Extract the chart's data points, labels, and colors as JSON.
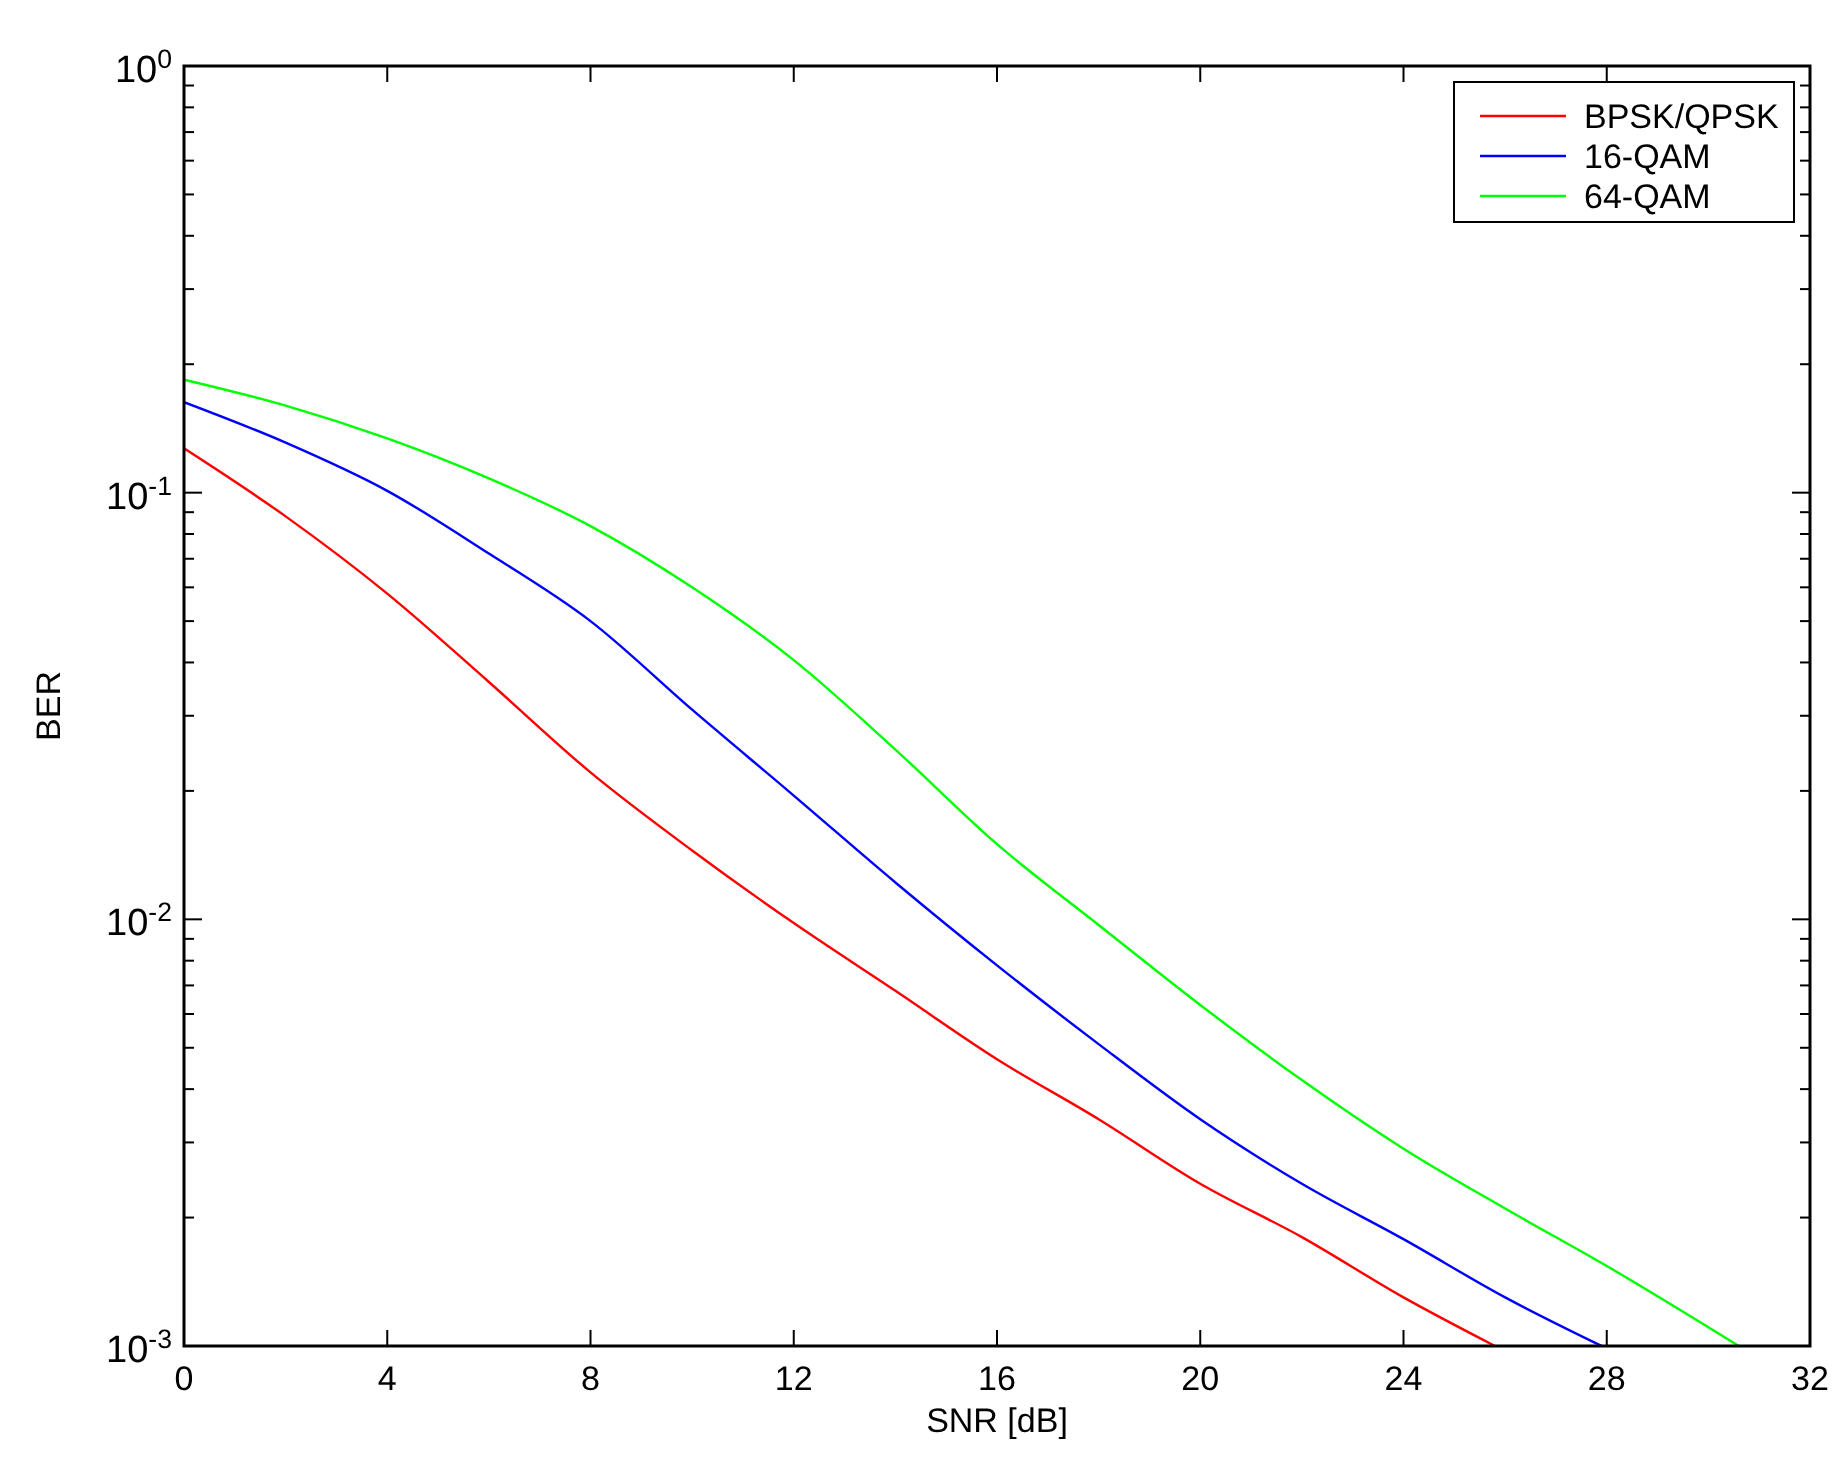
{
  "chart_data": {
    "type": "line",
    "xlabel": "SNR [dB]",
    "ylabel": "BER",
    "log": "y",
    "grid": false,
    "legend": "top right",
    "line_style": "solid",
    "marker": "none",
    "xlim": [
      0,
      32
    ],
    "xticks": [
      0,
      4,
      8,
      12,
      16,
      20,
      24,
      28,
      32
    ],
    "ylim": [
      0.001,
      1
    ],
    "yticks": [
      {
        "value": 0.001,
        "label": "10$^{-3}$"
      },
      {
        "value": 0.002,
        "label": null
      },
      {
        "value": 0.003,
        "label": null
      },
      {
        "value": 0.004,
        "label": null
      },
      {
        "value": 0.005,
        "label": null
      },
      {
        "value": 0.006,
        "label": null
      },
      {
        "value": 0.007,
        "label": null
      },
      {
        "value": 0.008,
        "label": null
      },
      {
        "value": 0.009,
        "label": null
      },
      {
        "value": 0.01,
        "label": "10$^{-2}$"
      },
      {
        "value": 0.02,
        "label": null
      },
      {
        "value": 0.03,
        "label": null
      },
      {
        "value": 0.04,
        "label": null
      },
      {
        "value": 0.05,
        "label": null
      },
      {
        "value": 0.06,
        "label": null
      },
      {
        "value": 0.07,
        "label": null
      },
      {
        "value": 0.08,
        "label": null
      },
      {
        "value": 0.09,
        "label": null
      },
      {
        "value": 0.1,
        "label": "10$^{-1}$"
      },
      {
        "value": 0.2,
        "label": null
      },
      {
        "value": 0.3,
        "label": null
      },
      {
        "value": 0.4,
        "label": null
      },
      {
        "value": 0.5,
        "label": null
      },
      {
        "value": 0.6,
        "label": null
      },
      {
        "value": 0.7,
        "label": null
      },
      {
        "value": 0.8,
        "label": null
      },
      {
        "value": 0.9,
        "label": null
      },
      {
        "value": 1,
        "label": "10$^{0}$"
      }
    ],
    "series": [
      {
        "name": "BPSK/QPSK",
        "color": "#ff0000",
        "x": [
          0,
          2,
          4,
          6,
          8,
          10,
          12,
          14,
          16,
          18,
          20,
          22,
          24,
          25.8
        ],
        "values": [
          0.127,
          0.088,
          0.058,
          0.036,
          0.0221,
          0.0145,
          0.0098,
          0.0068,
          0.0047,
          0.0034,
          0.0024,
          0.0018,
          0.0013,
          0.001
        ]
      },
      {
        "name": "16-QAM",
        "color": "#0000ff",
        "x": [
          0,
          2,
          4,
          6,
          8,
          10,
          12,
          14,
          16,
          18,
          20,
          22,
          24,
          26,
          27.9
        ],
        "values": [
          0.163,
          0.131,
          0.101,
          0.072,
          0.05,
          0.031,
          0.0195,
          0.0122,
          0.0078,
          0.0051,
          0.0034,
          0.0024,
          0.00178,
          0.0013,
          0.001
        ]
      },
      {
        "name": "64-QAM",
        "color": "#00ff00",
        "x": [
          0,
          2,
          4,
          6,
          8,
          10,
          12,
          14,
          16,
          18,
          20,
          22,
          24,
          26,
          28,
          30.6
        ],
        "values": [
          0.184,
          0.16,
          0.134,
          0.108,
          0.0835,
          0.06,
          0.0405,
          0.025,
          0.015,
          0.0097,
          0.0063,
          0.0042,
          0.0029,
          0.0021,
          0.00154,
          0.001
        ]
      }
    ]
  }
}
